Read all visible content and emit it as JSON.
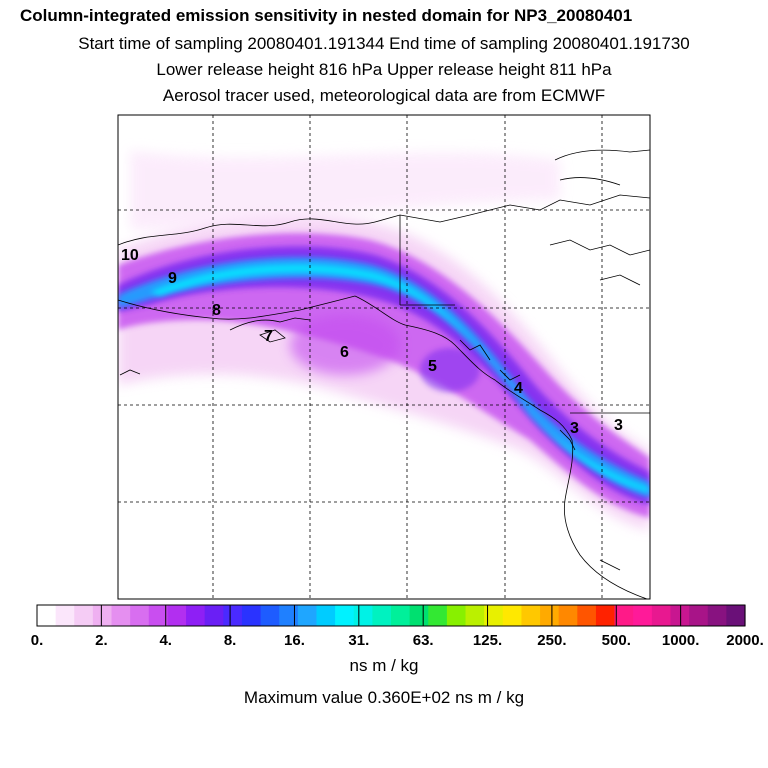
{
  "titles": {
    "line1": "Column-integrated emission sensitivity in nested domain for NP3_20080401",
    "line2": "Start time of sampling 20080401.191344     End time of sampling 20080401.191730",
    "line3": "Lower release height  816 hPa        Upper release height  811 hPa",
    "line4": "Aerosol tracer used, meteorological data are from ECMWF"
  },
  "map_labels": [
    "10",
    "9",
    "8",
    "7",
    "6",
    "5",
    "4",
    "3",
    "3"
  ],
  "colorbar": {
    "tick_labels": [
      "0.",
      "2.",
      "4.",
      "8.",
      "16.",
      "31.",
      "63.",
      "125.",
      "250.",
      "500.",
      "1000.",
      "2000."
    ],
    "colors": [
      "#ffffff",
      "#fbe6fb",
      "#f5ccf5",
      "#efb0f1",
      "#e58ff0",
      "#d86ef0",
      "#c94ef0",
      "#b22ff0",
      "#8e1ff5",
      "#6a1ff5",
      "#4a2aff",
      "#2a33ff",
      "#1e5cff",
      "#1f80ff",
      "#1fa6ff",
      "#00ccff",
      "#00f2ff",
      "#00f2e6",
      "#00f2c0",
      "#00f09a",
      "#00e070",
      "#33e833",
      "#88f000",
      "#bbf000",
      "#e8f000",
      "#ffe800",
      "#ffc800",
      "#ffaa00",
      "#ff8800",
      "#ff5500",
      "#ff2200",
      "#ff1a88",
      "#ff1a99",
      "#e81890",
      "#c81690",
      "#a81488",
      "#881280",
      "#6a1078"
    ],
    "units": "ns m / kg"
  },
  "maximum_value": "Maximum value  0.360E+02 ns m / kg"
}
